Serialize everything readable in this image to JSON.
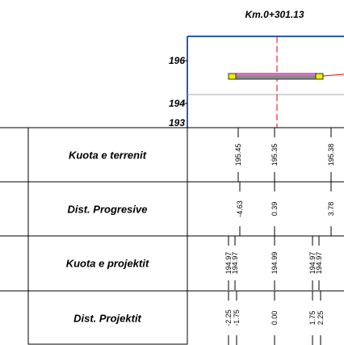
{
  "header": {
    "title": "Km.0+301.13"
  },
  "axis": {
    "labels": [
      "196",
      "194",
      "193"
    ]
  },
  "table": {
    "rows": [
      {
        "label": "Kuota e terrenit",
        "values": [
          "195.45",
          "195.35",
          "195.38"
        ]
      },
      {
        "label": "Dist. Progresive",
        "values": [
          "-4.63",
          "0.39",
          "3.78"
        ]
      },
      {
        "label": "Kuota e projektit",
        "values": [
          "194.97",
          "194.97",
          "194.99",
          "194.97",
          "194.97"
        ]
      },
      {
        "label": "Dist. Projektit",
        "values": [
          "-2.25",
          "-1.75",
          "0.00",
          "1.75",
          "2.25"
        ]
      }
    ]
  }
}
